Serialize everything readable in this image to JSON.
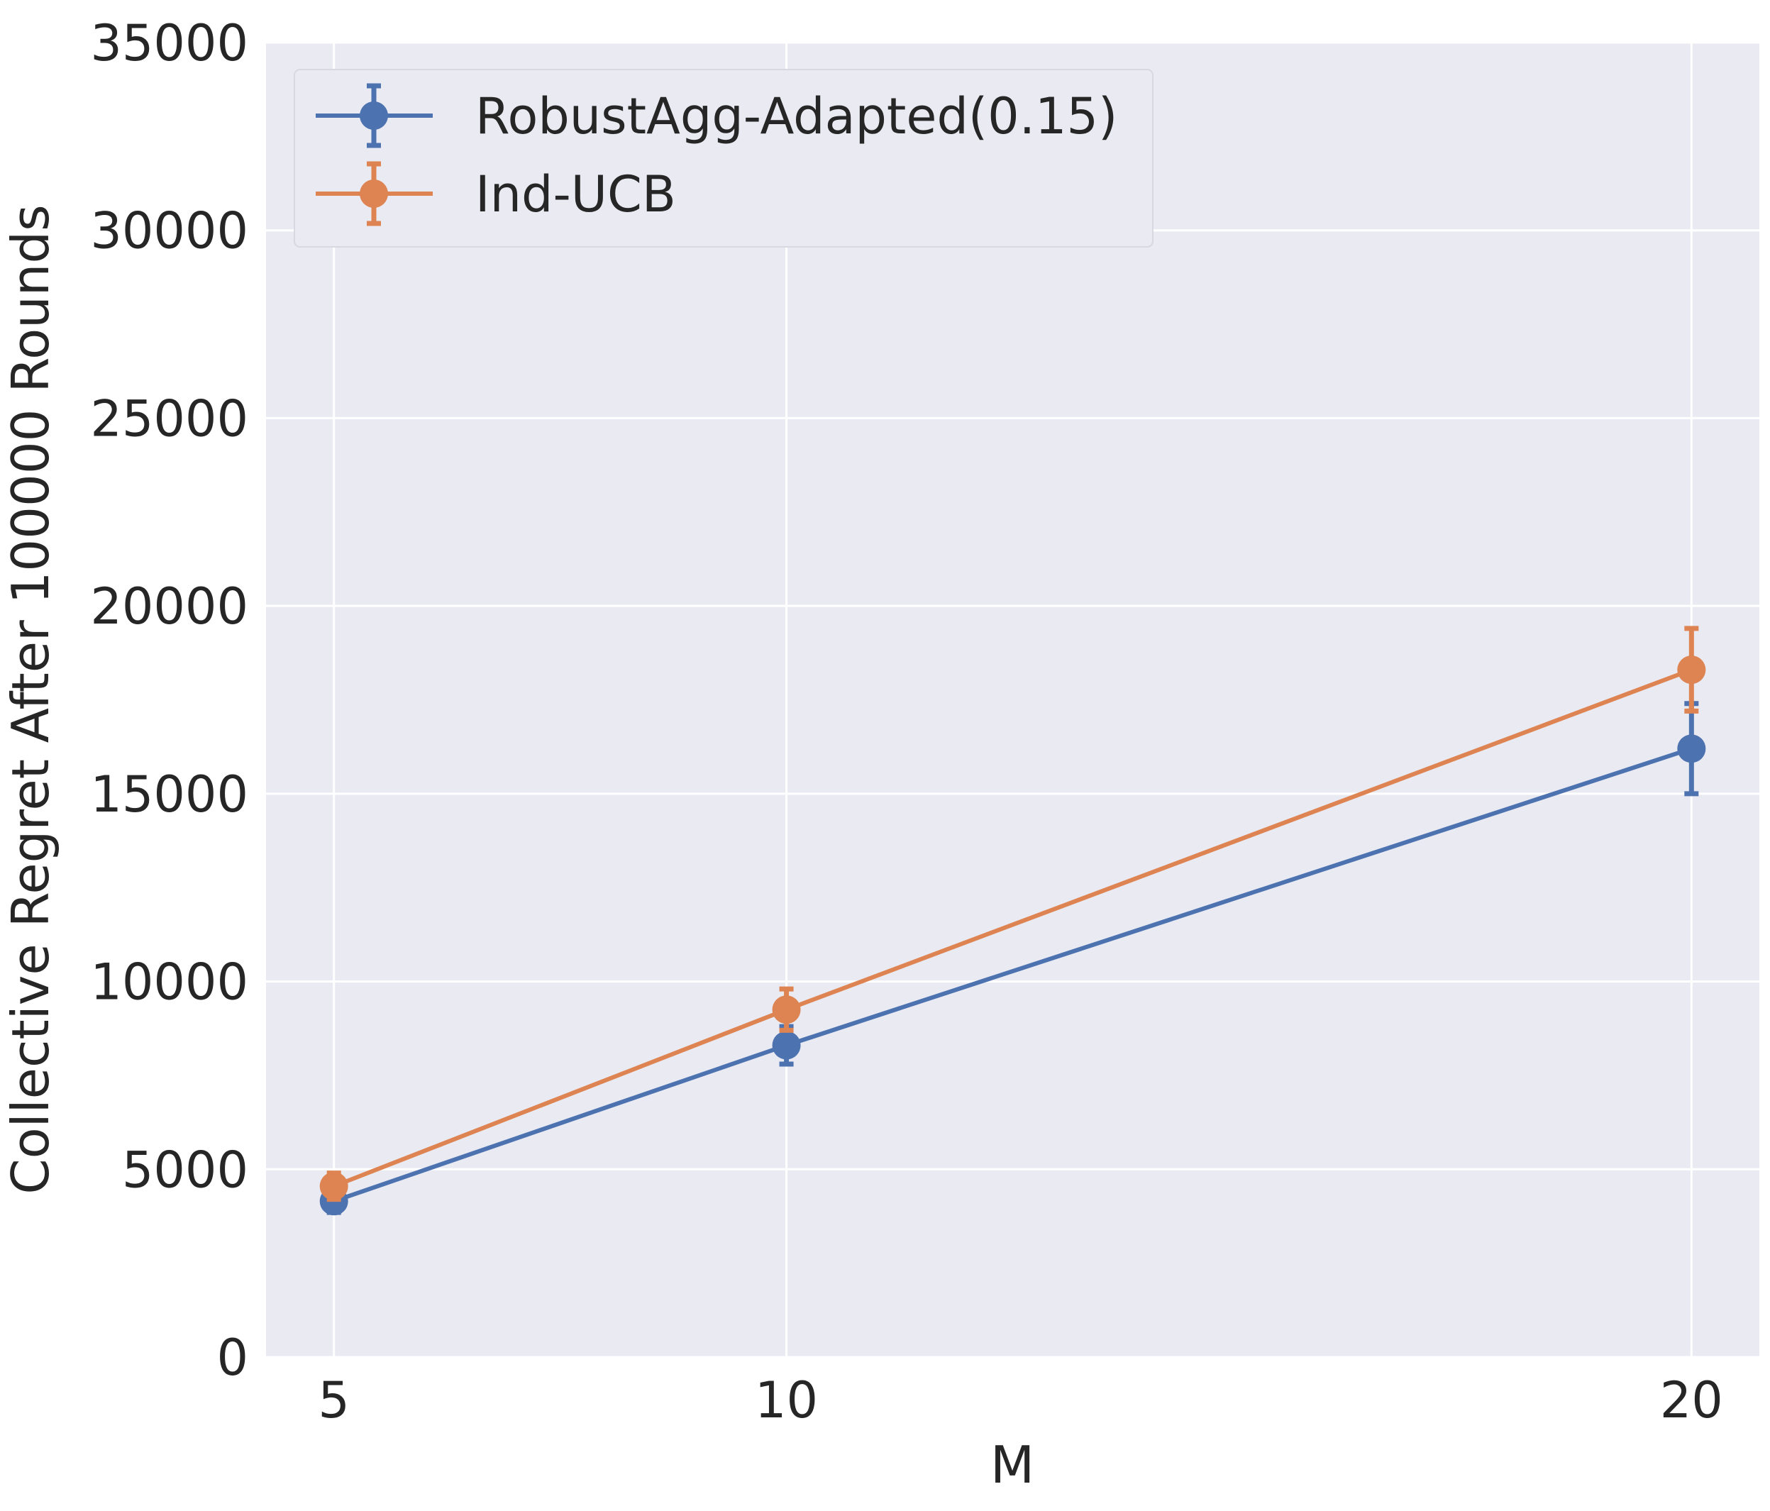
{
  "chart_data": {
    "type": "line",
    "title": "",
    "xlabel": "M",
    "ylabel": "Collective Regret After 100000 Rounds",
    "x": [
      5,
      10,
      20
    ],
    "xlim": [
      4.25,
      20.75
    ],
    "ylim": [
      0,
      35000
    ],
    "xticks": [
      "5",
      "10",
      "20"
    ],
    "yticks": [
      "0",
      "5000",
      "10000",
      "15000",
      "20000",
      "25000",
      "30000",
      "35000"
    ],
    "grid": true,
    "legend_position": "top-left",
    "colors": {
      "background": "#eaeaf2",
      "grid": "#ffffff"
    },
    "series": [
      {
        "name": "RobustAgg-Adapted(0.15)",
        "color": "#4c72b0",
        "values": [
          4150,
          8300,
          16200
        ],
        "error": [
          300,
          500,
          1200
        ]
      },
      {
        "name": "Ind-UCB",
        "color": "#dd8452",
        "values": [
          4550,
          9250,
          18300
        ],
        "error": [
          350,
          550,
          1100
        ]
      }
    ]
  }
}
